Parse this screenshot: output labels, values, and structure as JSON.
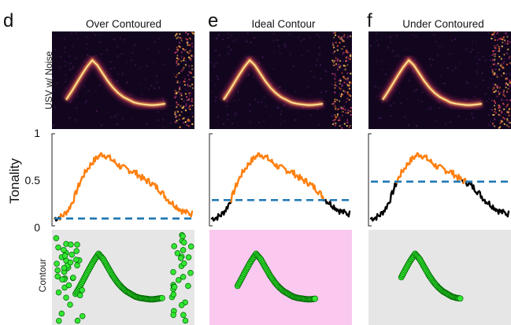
{
  "figure": {
    "columns": [
      {
        "letter": "d",
        "title": "Over Contoured",
        "threshold": 0.08,
        "contour_bg": "#e6e6e6",
        "noise_dots": true
      },
      {
        "letter": "e",
        "title": "Ideal Contour",
        "threshold": 0.28,
        "contour_bg": "#fbc8f0",
        "noise_dots": false
      },
      {
        "letter": "f",
        "title": "Under Contoured",
        "threshold": 0.48,
        "contour_bg": "#e6e6e6",
        "noise_dots": false
      }
    ],
    "row_labels": {
      "spectrogram": "USV w/ Noise",
      "tonality": "Tonality",
      "contour": "Contour"
    },
    "y_ticks": [
      "1",
      "0.5",
      "0"
    ],
    "colors": {
      "above_threshold": "#ff7f0e",
      "below_threshold": "#000000",
      "threshold_line": "#1f77b4",
      "contour_fill": "#33e633",
      "contour_edge": "#006600",
      "spectrogram_bg": "#12061f"
    }
  },
  "chart_data": {
    "type": "line",
    "y_axis": {
      "label": "Tonality",
      "ylim": [
        0,
        1
      ],
      "ticks": [
        0,
        0.5,
        1
      ]
    },
    "thresholds": {
      "Over Contoured": 0.08,
      "Ideal Contour": 0.28,
      "Under Contoured": 0.48
    },
    "tonality_trace": [
      0.08,
      0.09,
      0.12,
      0.18,
      0.28,
      0.42,
      0.54,
      0.62,
      0.69,
      0.74,
      0.78,
      0.76,
      0.72,
      0.68,
      0.64,
      0.62,
      0.6,
      0.58,
      0.54,
      0.5,
      0.48,
      0.44,
      0.4,
      0.34,
      0.28,
      0.24,
      0.2,
      0.16,
      0.14,
      0.13
    ],
    "contour_trace": [
      0.3,
      0.42,
      0.55,
      0.68,
      0.8,
      0.9,
      0.82,
      0.7,
      0.58,
      0.48,
      0.4,
      0.34,
      0.3,
      0.26,
      0.24,
      0.23,
      0.22,
      0.22,
      0.23,
      0.24
    ]
  }
}
